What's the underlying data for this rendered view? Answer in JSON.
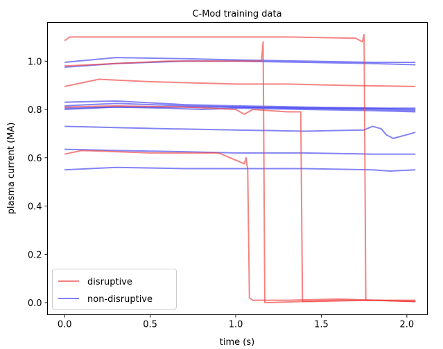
{
  "chart_data": {
    "type": "line",
    "title": "C-Mod training data",
    "xlabel": "time (s)",
    "ylabel": "plasma current (MA)",
    "xlim": [
      -0.1,
      2.12
    ],
    "ylim": [
      -0.05,
      1.16
    ],
    "xticks": [
      0.0,
      0.5,
      1.0,
      1.5,
      2.0
    ],
    "xtick_labels": [
      "0.0",
      "0.5",
      "1.0",
      "1.5",
      "2.0"
    ],
    "yticks": [
      0.0,
      0.2,
      0.4,
      0.6,
      0.8,
      1.0
    ],
    "ytick_labels": [
      "0.0",
      "0.2",
      "0.4",
      "0.6",
      "0.8",
      "1.0"
    ],
    "grid": false,
    "legend": {
      "position": "lower-left",
      "entries": [
        "disruptive",
        "non-disruptive"
      ]
    },
    "colors": {
      "disruptive": "#f04040",
      "non_disruptive": "#4040f0"
    },
    "series": [
      {
        "group": "disruptive",
        "x": [
          0.0,
          0.03,
          0.3,
          0.6,
          1.0,
          1.3,
          1.7,
          1.74,
          1.75,
          1.76,
          1.8,
          2.05
        ],
        "y": [
          1.085,
          1.1,
          1.1,
          1.1,
          1.1,
          1.1,
          1.095,
          1.08,
          1.11,
          0.01,
          0.01,
          0.005
        ]
      },
      {
        "group": "disruptive",
        "x": [
          0.0,
          0.3,
          0.6,
          1.0,
          1.15,
          1.16,
          1.17,
          1.2,
          1.6,
          2.05
        ],
        "y": [
          0.98,
          0.99,
          1.0,
          1.0,
          1.0,
          1.08,
          0.0,
          0.0,
          0.01,
          0.01
        ]
      },
      {
        "group": "disruptive",
        "x": [
          0.0,
          0.2,
          0.5,
          1.0,
          1.3,
          1.6,
          2.05
        ],
        "y": [
          0.895,
          0.925,
          0.915,
          0.905,
          0.905,
          0.9,
          0.895
        ]
      },
      {
        "group": "disruptive",
        "x": [
          0.0,
          0.3,
          0.7,
          1.0,
          1.05,
          1.1,
          1.3,
          1.37,
          1.38,
          1.39,
          1.45,
          1.8,
          2.05
        ],
        "y": [
          0.81,
          0.815,
          0.81,
          0.8,
          0.78,
          0.8,
          0.79,
          0.79,
          0.79,
          0.005,
          0.005,
          0.01,
          0.005
        ]
      },
      {
        "group": "disruptive",
        "x": [
          0.0,
          0.1,
          0.5,
          0.9,
          1.0,
          1.05,
          1.06,
          1.07,
          1.08,
          1.1,
          1.3,
          1.6,
          2.05
        ],
        "y": [
          0.615,
          0.63,
          0.62,
          0.62,
          0.59,
          0.575,
          0.6,
          0.55,
          0.02,
          0.01,
          0.01,
          0.015,
          0.005
        ]
      },
      {
        "group": "non-disruptive",
        "x": [
          0.0,
          0.3,
          0.7,
          1.0,
          1.4,
          1.8,
          2.05
        ],
        "y": [
          0.995,
          1.015,
          1.01,
          1.005,
          1.0,
          0.995,
          0.995
        ]
      },
      {
        "group": "non-disruptive",
        "x": [
          0.0,
          0.3,
          0.7,
          1.0,
          1.4,
          1.8,
          2.05
        ],
        "y": [
          0.975,
          0.99,
          1.0,
          1.0,
          0.995,
          0.99,
          0.985
        ]
      },
      {
        "group": "non-disruptive",
        "x": [
          0.0,
          0.3,
          0.7,
          1.0,
          1.4,
          1.8,
          2.05
        ],
        "y": [
          0.83,
          0.835,
          0.82,
          0.815,
          0.81,
          0.805,
          0.8
        ]
      },
      {
        "group": "non-disruptive",
        "x": [
          0.0,
          0.3,
          0.7,
          1.0,
          1.4,
          1.8,
          2.05
        ],
        "y": [
          0.815,
          0.825,
          0.815,
          0.81,
          0.805,
          0.805,
          0.805
        ]
      },
      {
        "group": "non-disruptive",
        "x": [
          0.0,
          0.3,
          0.7,
          1.0,
          1.4,
          1.8,
          2.05
        ],
        "y": [
          0.805,
          0.81,
          0.81,
          0.81,
          0.805,
          0.8,
          0.795
        ]
      },
      {
        "group": "non-disruptive",
        "x": [
          0.0,
          0.3,
          0.6,
          0.8,
          1.0,
          1.4,
          1.8,
          2.05
        ],
        "y": [
          0.8,
          0.81,
          0.805,
          0.8,
          0.805,
          0.8,
          0.795,
          0.79
        ]
      },
      {
        "group": "non-disruptive",
        "x": [
          0.0,
          0.3,
          0.6,
          1.0,
          1.4,
          1.75,
          1.8,
          1.85,
          1.88,
          1.92,
          2.05
        ],
        "y": [
          0.73,
          0.725,
          0.72,
          0.715,
          0.71,
          0.715,
          0.73,
          0.72,
          0.695,
          0.68,
          0.705
        ]
      },
      {
        "group": "non-disruptive",
        "x": [
          0.0,
          0.3,
          0.7,
          1.0,
          1.4,
          1.8,
          2.05
        ],
        "y": [
          0.635,
          0.63,
          0.625,
          0.62,
          0.62,
          0.615,
          0.615
        ]
      },
      {
        "group": "non-disruptive",
        "x": [
          0.0,
          0.3,
          0.7,
          1.0,
          1.4,
          1.8,
          1.9,
          2.05
        ],
        "y": [
          0.55,
          0.56,
          0.555,
          0.555,
          0.555,
          0.55,
          0.545,
          0.55
        ]
      }
    ]
  }
}
